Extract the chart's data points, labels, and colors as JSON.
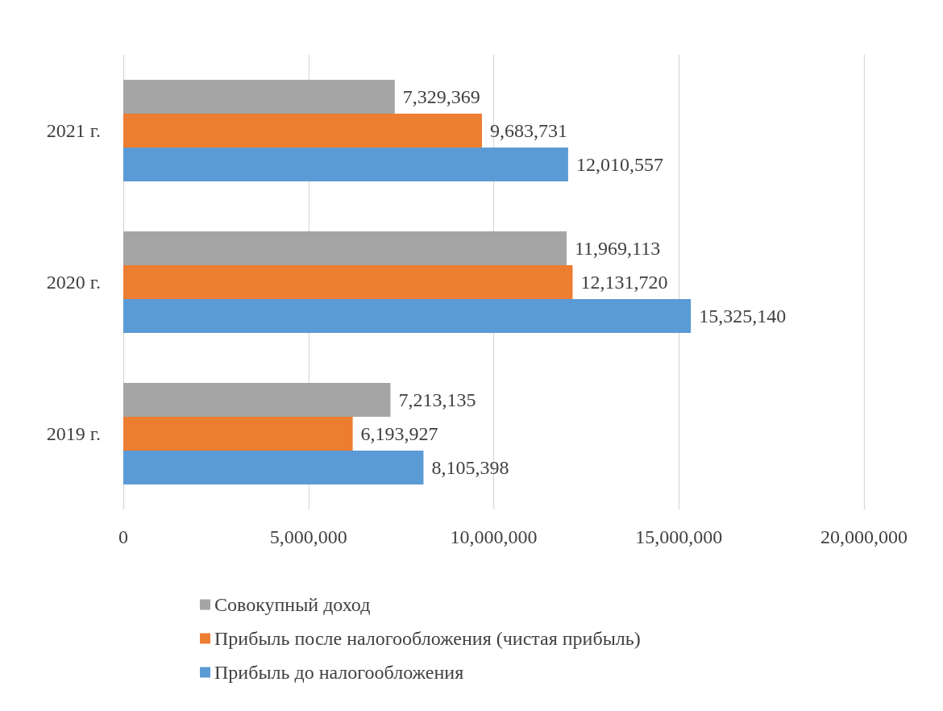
{
  "chart_data": {
    "type": "bar",
    "orientation": "horizontal",
    "categories": [
      "2021 г.",
      "2020 г.",
      "2019 г."
    ],
    "series": [
      {
        "name": "Совокупный доход",
        "color": "#a5a5a5",
        "values": [
          7329369,
          11969113,
          7213135
        ],
        "value_labels": [
          "7,329,369",
          "11,969,113",
          "7,213,135"
        ]
      },
      {
        "name": "Прибыль после налогообложения (чистая прибыль)",
        "color": "#ed7d31",
        "values": [
          9683731,
          12131720,
          6193927
        ],
        "value_labels": [
          "9,683,731",
          "12,131,720",
          "6,193,927"
        ]
      },
      {
        "name": "Прибыль до налогообложения",
        "color": "#5b9bd5",
        "values": [
          12010557,
          15325140,
          8105398
        ],
        "value_labels": [
          "12,010,557",
          "15,325,140",
          "8,105,398"
        ]
      }
    ],
    "xlim": [
      0,
      20000000
    ],
    "xticks": [
      0,
      {
        "value": 5000000,
        "label": "5,000,000"
      },
      {
        "value": 10000000,
        "label": "10,000,000"
      },
      {
        "value": 15000000,
        "label": "15,000,000"
      },
      {
        "value": 20000000,
        "label": "20,000,000"
      }
    ],
    "grid": "x",
    "legend": "bottom left"
  }
}
